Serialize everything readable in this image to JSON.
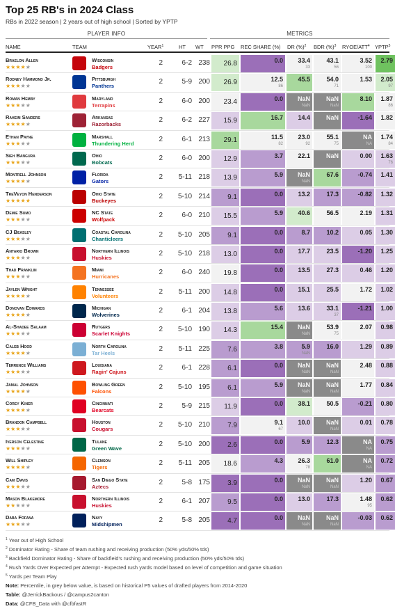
{
  "title": "Top 25 RB's in 2024 Class",
  "subtitle": "RBs in 2022 season | 2 years out of high school | Sorted by YPTP",
  "groups": {
    "player_info": "PLAYER INFO",
    "metrics": "METRICS"
  },
  "columns": {
    "name": "NAME",
    "team": "TEAM",
    "year": "YEAR",
    "year_sup": "1",
    "ht": "HT",
    "wt": "WT",
    "ppr": "PPR PPG",
    "rec": "REC SHARE (%)",
    "dr": "DR (%)",
    "dr_sup": "2",
    "bdr": "BDR (%)",
    "bdr_sup": "3",
    "ryoe": "RYOE/ATT",
    "ryoe_sup": "4",
    "yptp": "YPTP",
    "yptp_sup": "5"
  },
  "colors": {
    "rank_ramp": [
      "#9b6fb8",
      "#b99ccf",
      "#dccde6",
      "#f2f2f2",
      "#d2ebcc",
      "#a8d89d",
      "#6fc25f"
    ],
    "nan": "#8a8a8a",
    "star_on": "#e8a317",
    "star_off": "#999999"
  },
  "players": [
    {
      "name": "Braelon Allen",
      "stars": 4,
      "team": "Wisconsin",
      "mascot": "Badgers",
      "tcolor": "#c5050c",
      "year": "2",
      "ht": "6-2",
      "wt": "238",
      "ppr": {
        "v": "26.8",
        "lvl": 4
      },
      "rec": {
        "v": "0.0",
        "p": "",
        "lvl": 0
      },
      "dr": {
        "v": "33.4",
        "p": "33",
        "lvl": 3
      },
      "bdr": {
        "v": "43.1",
        "p": "56",
        "lvl": 3
      },
      "ryoe": {
        "v": "3.52",
        "p": "100",
        "lvl": 3
      },
      "yptp": {
        "v": "2.79",
        "p": "",
        "lvl": 6
      }
    },
    {
      "name": "Rodney Hammond Jr.",
      "stars": 3,
      "team": "Pittsburgh",
      "mascot": "Panthers",
      "tcolor": "#003594",
      "year": "2",
      "ht": "5-9",
      "wt": "200",
      "ppr": {
        "v": "26.9",
        "lvl": 4
      },
      "rec": {
        "v": "12.5",
        "p": "86",
        "lvl": 3
      },
      "dr": {
        "v": "45.5",
        "p": "",
        "lvl": 5
      },
      "bdr": {
        "v": "54.0",
        "p": "71",
        "lvl": 3
      },
      "ryoe": {
        "v": "1.53",
        "p": "",
        "lvl": 3
      },
      "yptp": {
        "v": "2.05",
        "p": "97",
        "lvl": 4
      }
    },
    {
      "name": "Roman Hemby",
      "stars": 3,
      "team": "Maryland",
      "mascot": "Terrapins",
      "tcolor": "#e03a3e",
      "year": "2",
      "ht": "6-0",
      "wt": "200",
      "ppr": {
        "v": "23.4",
        "lvl": 3
      },
      "rec": {
        "v": "0.0",
        "p": "",
        "lvl": 0
      },
      "dr": {
        "v": "NaN",
        "p": "NaN",
        "lvl": -1
      },
      "bdr": {
        "v": "NaN",
        "p": "NaN",
        "lvl": -1
      },
      "ryoe": {
        "v": "8.10",
        "p": "",
        "lvl": 5
      },
      "yptp": {
        "v": "1.87",
        "p": "86",
        "lvl": 3
      }
    },
    {
      "name": "Raheim Sanders",
      "stars": 4,
      "team": "Arkansas",
      "mascot": "Razorbacks",
      "tcolor": "#9d2235",
      "year": "2",
      "ht": "6-2",
      "wt": "227",
      "ppr": {
        "v": "15.9",
        "lvl": 2
      },
      "rec": {
        "v": "16.7",
        "p": "",
        "lvl": 5
      },
      "dr": {
        "v": "14.4",
        "p": "",
        "lvl": 2
      },
      "bdr": {
        "v": "NaN",
        "p": "",
        "lvl": -1
      },
      "ryoe": {
        "v": "-1.64",
        "p": "",
        "lvl": 0
      },
      "yptp": {
        "v": "1.82",
        "p": "",
        "lvl": 3
      }
    },
    {
      "name": "Ethan Payne",
      "stars": 3,
      "team": "Marshall",
      "mascot": "Thundering Herd",
      "tcolor": "#00b140",
      "year": "2",
      "ht": "6-1",
      "wt": "213",
      "ppr": {
        "v": "29.1",
        "lvl": 5
      },
      "rec": {
        "v": "11.5",
        "p": "82",
        "lvl": 3
      },
      "dr": {
        "v": "23.0",
        "p": "92",
        "lvl": 3
      },
      "bdr": {
        "v": "55.1",
        "p": "75",
        "lvl": 3
      },
      "ryoe": {
        "v": "NA",
        "p": "NA",
        "lvl": -1
      },
      "yptp": {
        "v": "1.74",
        "p": "84",
        "lvl": 3
      }
    },
    {
      "name": "Sieh Bangura",
      "stars": 3,
      "team": "Ohio",
      "mascot": "Bobcats",
      "tcolor": "#00694e",
      "year": "2",
      "ht": "6-0",
      "wt": "200",
      "ppr": {
        "v": "12.9",
        "lvl": 2
      },
      "rec": {
        "v": "3.7",
        "p": "",
        "lvl": 1
      },
      "dr": {
        "v": "22.1",
        "p": "",
        "lvl": 3
      },
      "bdr": {
        "v": "NaN",
        "p": "",
        "lvl": -1
      },
      "ryoe": {
        "v": "0.00",
        "p": "",
        "lvl": 2
      },
      "yptp": {
        "v": "1.63",
        "p": "76",
        "lvl": 2
      }
    },
    {
      "name": "Montrell Johnson",
      "stars": 4,
      "team": "Florida",
      "mascot": "Gators",
      "tcolor": "#0021a5",
      "year": "2",
      "ht": "5-11",
      "wt": "218",
      "ppr": {
        "v": "13.9",
        "lvl": 2
      },
      "rec": {
        "v": "5.9",
        "p": "",
        "lvl": 1
      },
      "dr": {
        "v": "NaN",
        "p": "NaN",
        "lvl": -1
      },
      "bdr": {
        "v": "67.6",
        "p": "",
        "lvl": 5
      },
      "ryoe": {
        "v": "-0.74",
        "p": "",
        "lvl": 1
      },
      "yptp": {
        "v": "1.41",
        "p": "",
        "lvl": 2
      }
    },
    {
      "name": "TreVeyon Henderson",
      "stars": 5,
      "team": "Ohio State",
      "mascot": "Buckeyes",
      "tcolor": "#bb0000",
      "year": "2",
      "ht": "5-10",
      "wt": "214",
      "ppr": {
        "v": "9.1",
        "lvl": 1
      },
      "rec": {
        "v": "0.0",
        "p": "",
        "lvl": 0
      },
      "dr": {
        "v": "13.2",
        "p": "",
        "lvl": 2
      },
      "bdr": {
        "v": "17.3",
        "p": "",
        "lvl": 1
      },
      "ryoe": {
        "v": "-0.82",
        "p": "",
        "lvl": 1
      },
      "yptp": {
        "v": "1.32",
        "p": "",
        "lvl": 2
      }
    },
    {
      "name": "Demie Sumo",
      "stars": 3,
      "team": "NC State",
      "mascot": "Wolfpack",
      "tcolor": "#cc0000",
      "year": "2",
      "ht": "6-0",
      "wt": "210",
      "ppr": {
        "v": "15.5",
        "lvl": 2
      },
      "rec": {
        "v": "5.9",
        "p": "",
        "lvl": 1
      },
      "dr": {
        "v": "40.6",
        "p": "",
        "lvl": 4
      },
      "bdr": {
        "v": "56.5",
        "p": "",
        "lvl": 3
      },
      "ryoe": {
        "v": "2.19",
        "p": "",
        "lvl": 3
      },
      "yptp": {
        "v": "1.31",
        "p": "",
        "lvl": 2
      }
    },
    {
      "name": "CJ Beasley",
      "stars": 3,
      "team": "Coastal Carolina",
      "mascot": "Chanticleers",
      "tcolor": "#006f71",
      "year": "2",
      "ht": "5-10",
      "wt": "205",
      "ppr": {
        "v": "9.1",
        "lvl": 1
      },
      "rec": {
        "v": "0.0",
        "p": "",
        "lvl": 0
      },
      "dr": {
        "v": "8.7",
        "p": "",
        "lvl": 1
      },
      "bdr": {
        "v": "10.2",
        "p": "",
        "lvl": 1
      },
      "ryoe": {
        "v": "0.05",
        "p": "",
        "lvl": 2
      },
      "yptp": {
        "v": "1.30",
        "p": "",
        "lvl": 2
      }
    },
    {
      "name": "Antario Brown",
      "stars": 3,
      "team": "Northern Illinois",
      "mascot": "Huskies",
      "tcolor": "#c8102e",
      "year": "2",
      "ht": "5-10",
      "wt": "218",
      "ppr": {
        "v": "13.0",
        "lvl": 2
      },
      "rec": {
        "v": "0.0",
        "p": "",
        "lvl": 0
      },
      "dr": {
        "v": "17.7",
        "p": "",
        "lvl": 2
      },
      "bdr": {
        "v": "23.5",
        "p": "",
        "lvl": 2
      },
      "ryoe": {
        "v": "-1.20",
        "p": "",
        "lvl": 0
      },
      "yptp": {
        "v": "1.25",
        "p": "",
        "lvl": 2
      }
    },
    {
      "name": "Thad Franklin",
      "stars": 3,
      "team": "Miami",
      "mascot": "Hurricanes",
      "tcolor": "#f47321",
      "year": "2",
      "ht": "6-0",
      "wt": "240",
      "ppr": {
        "v": "19.8",
        "lvl": 3
      },
      "rec": {
        "v": "0.0",
        "p": "",
        "lvl": 0
      },
      "dr": {
        "v": "13.5",
        "p": "",
        "lvl": 2
      },
      "bdr": {
        "v": "27.3",
        "p": "",
        "lvl": 2
      },
      "ryoe": {
        "v": "0.46",
        "p": "",
        "lvl": 2
      },
      "yptp": {
        "v": "1.20",
        "p": "",
        "lvl": 2
      }
    },
    {
      "name": "Jaylen Wright",
      "stars": 4,
      "team": "Tennessee",
      "mascot": "Volunteers",
      "tcolor": "#ff8200",
      "year": "2",
      "ht": "5-11",
      "wt": "200",
      "ppr": {
        "v": "14.8",
        "lvl": 2
      },
      "rec": {
        "v": "0.0",
        "p": "",
        "lvl": 0
      },
      "dr": {
        "v": "15.1",
        "p": "",
        "lvl": 2
      },
      "bdr": {
        "v": "25.5",
        "p": "",
        "lvl": 2
      },
      "ryoe": {
        "v": "1.72",
        "p": "",
        "lvl": 3
      },
      "yptp": {
        "v": "1.02",
        "p": "",
        "lvl": 2
      }
    },
    {
      "name": "Donovan Edwards",
      "stars": 4,
      "team": "Michigan",
      "mascot": "Wolverines",
      "tcolor": "#00274c",
      "year": "2",
      "ht": "6-1",
      "wt": "204",
      "ppr": {
        "v": "13.8",
        "lvl": 2
      },
      "rec": {
        "v": "5.6",
        "p": "",
        "lvl": 1
      },
      "dr": {
        "v": "13.6",
        "p": "",
        "lvl": 2
      },
      "bdr": {
        "v": "33.1",
        "p": "37",
        "lvl": 2
      },
      "ryoe": {
        "v": "-1.21",
        "p": "",
        "lvl": 0
      },
      "yptp": {
        "v": "1.00",
        "p": "",
        "lvl": 2
      }
    },
    {
      "name": "Al-Shadee Salaam",
      "stars": 3,
      "team": "Rutgers",
      "mascot": "Scarlet Knights",
      "tcolor": "#cc0033",
      "year": "2",
      "ht": "5-10",
      "wt": "190",
      "ppr": {
        "v": "14.3",
        "lvl": 2
      },
      "rec": {
        "v": "15.4",
        "p": "",
        "lvl": 5
      },
      "dr": {
        "v": "NaN",
        "p": "NaN",
        "lvl": -1
      },
      "bdr": {
        "v": "53.9",
        "p": "75",
        "lvl": 3
      },
      "ryoe": {
        "v": "2.07",
        "p": "",
        "lvl": 3
      },
      "yptp": {
        "v": "0.98",
        "p": "",
        "lvl": 2
      }
    },
    {
      "name": "Caleb Hood",
      "stars": 4,
      "team": "North Carolina",
      "mascot": "Tar Heels",
      "tcolor": "#7bafd4",
      "year": "2",
      "ht": "5-11",
      "wt": "225",
      "ppr": {
        "v": "7.6",
        "lvl": 1
      },
      "rec": {
        "v": "3.8",
        "p": "",
        "lvl": 1
      },
      "dr": {
        "v": "5.9",
        "p": "NaN",
        "lvl": 1
      },
      "bdr": {
        "v": "16.0",
        "p": "",
        "lvl": 1
      },
      "ryoe": {
        "v": "1.29",
        "p": "",
        "lvl": 2
      },
      "yptp": {
        "v": "0.89",
        "p": "",
        "lvl": 2
      }
    },
    {
      "name": "Terrence Williams",
      "stars": 3,
      "team": "Louisiana",
      "mascot": "Ragin' Cajuns",
      "tcolor": "#ce181e",
      "year": "2",
      "ht": "6-1",
      "wt": "228",
      "ppr": {
        "v": "6.1",
        "lvl": 1
      },
      "rec": {
        "v": "0.0",
        "p": "",
        "lvl": 0
      },
      "dr": {
        "v": "NaN",
        "p": "NaN",
        "lvl": -1
      },
      "bdr": {
        "v": "NaN",
        "p": "NaN",
        "lvl": -1
      },
      "ryoe": {
        "v": "2.48",
        "p": "",
        "lvl": 3
      },
      "yptp": {
        "v": "0.88",
        "p": "",
        "lvl": 2
      }
    },
    {
      "name": "Jamal Johnson",
      "stars": 4,
      "team": "Bowling Green",
      "mascot": "Falcons",
      "tcolor": "#fe5000",
      "year": "2",
      "ht": "5-10",
      "wt": "195",
      "ppr": {
        "v": "6.1",
        "lvl": 1
      },
      "rec": {
        "v": "5.9",
        "p": "",
        "lvl": 1
      },
      "dr": {
        "v": "NaN",
        "p": "NaN",
        "lvl": -1
      },
      "bdr": {
        "v": "NaN",
        "p": "NaN",
        "lvl": -1
      },
      "ryoe": {
        "v": "1.77",
        "p": "",
        "lvl": 3
      },
      "yptp": {
        "v": "0.84",
        "p": "",
        "lvl": 2
      }
    },
    {
      "name": "Corey Kiner",
      "stars": 4,
      "team": "Cincinnati",
      "mascot": "Bearcats",
      "tcolor": "#e00122",
      "year": "2",
      "ht": "5-9",
      "wt": "215",
      "ppr": {
        "v": "11.9",
        "lvl": 2
      },
      "rec": {
        "v": "0.0",
        "p": "",
        "lvl": 0
      },
      "dr": {
        "v": "38.1",
        "p": "",
        "lvl": 4
      },
      "bdr": {
        "v": "50.5",
        "p": "",
        "lvl": 3
      },
      "ryoe": {
        "v": "-0.21",
        "p": "",
        "lvl": 1
      },
      "yptp": {
        "v": "0.80",
        "p": "",
        "lvl": 2
      }
    },
    {
      "name": "Brandon Campbell",
      "stars": 3,
      "team": "Houston",
      "mascot": "Cougars",
      "tcolor": "#c8102e",
      "year": "2",
      "ht": "5-10",
      "wt": "210",
      "ppr": {
        "v": "7.9",
        "lvl": 1
      },
      "rec": {
        "v": "9.1",
        "p": "67",
        "lvl": 3
      },
      "dr": {
        "v": "10.0",
        "p": "",
        "lvl": 2
      },
      "bdr": {
        "v": "NaN",
        "p": "NaN",
        "lvl": -1
      },
      "ryoe": {
        "v": "0.01",
        "p": "",
        "lvl": 2
      },
      "yptp": {
        "v": "0.78",
        "p": "",
        "lvl": 2
      }
    },
    {
      "name": "Iverson Celestine",
      "stars": 3,
      "team": "Tulane",
      "mascot": "Green Wave",
      "tcolor": "#006747",
      "year": "2",
      "ht": "5-10",
      "wt": "200",
      "ppr": {
        "v": "2.6",
        "lvl": 0
      },
      "rec": {
        "v": "0.0",
        "p": "",
        "lvl": 0
      },
      "dr": {
        "v": "5.9",
        "p": "",
        "lvl": 1
      },
      "bdr": {
        "v": "12.3",
        "p": "",
        "lvl": 1
      },
      "ryoe": {
        "v": "NA",
        "p": "NA",
        "lvl": -1
      },
      "yptp": {
        "v": "0.75",
        "p": "",
        "lvl": 1
      }
    },
    {
      "name": "Will Shipley",
      "stars": 4,
      "team": "Clemson",
      "mascot": "Tigers",
      "tcolor": "#f56600",
      "year": "2",
      "ht": "5-11",
      "wt": "205",
      "ppr": {
        "v": "18.6",
        "lvl": 3
      },
      "rec": {
        "v": "4.3",
        "p": "",
        "lvl": 1
      },
      "dr": {
        "v": "26.3",
        "p": "78",
        "lvl": 3
      },
      "bdr": {
        "v": "61.0",
        "p": "",
        "lvl": 5
      },
      "ryoe": {
        "v": "NA",
        "p": "NA",
        "lvl": -1
      },
      "yptp": {
        "v": "0.72",
        "p": "",
        "lvl": 1
      }
    },
    {
      "name": "Cam Davis",
      "stars": 3,
      "team": "San Diego State",
      "mascot": "Aztecs",
      "tcolor": "#a6192e",
      "year": "2",
      "ht": "5-8",
      "wt": "175",
      "ppr": {
        "v": "3.9",
        "lvl": 0
      },
      "rec": {
        "v": "0.0",
        "p": "",
        "lvl": 0
      },
      "dr": {
        "v": "NaN",
        "p": "NaN",
        "lvl": -1
      },
      "bdr": {
        "v": "NaN",
        "p": "NaN",
        "lvl": -1
      },
      "ryoe": {
        "v": "1.20",
        "p": "",
        "lvl": 2
      },
      "yptp": {
        "v": "0.67",
        "p": "",
        "lvl": 1
      }
    },
    {
      "name": "Mason Blakemore",
      "stars": 2,
      "team": "Northern Illinois",
      "mascot": "Huskies",
      "tcolor": "#c8102e",
      "year": "2",
      "ht": "6-1",
      "wt": "207",
      "ppr": {
        "v": "9.5",
        "lvl": 1
      },
      "rec": {
        "v": "0.0",
        "p": "",
        "lvl": 0
      },
      "dr": {
        "v": "13.0",
        "p": "",
        "lvl": 2
      },
      "bdr": {
        "v": "17.3",
        "p": "",
        "lvl": 1
      },
      "ryoe": {
        "v": "1.48",
        "p": "95",
        "lvl": 3
      },
      "yptp": {
        "v": "0.62",
        "p": "",
        "lvl": 1
      }
    },
    {
      "name": "Daba Fofana",
      "stars": 3,
      "team": "Navy",
      "mascot": "Midshipmen",
      "tcolor": "#00205b",
      "year": "2",
      "ht": "5-8",
      "wt": "205",
      "ppr": {
        "v": "4.7",
        "lvl": 0
      },
      "rec": {
        "v": "0.0",
        "p": "",
        "lvl": 0
      },
      "dr": {
        "v": "NaN",
        "p": "NaN",
        "lvl": -1
      },
      "bdr": {
        "v": "NaN",
        "p": "NaN",
        "lvl": -1
      },
      "ryoe": {
        "v": "-0.03",
        "p": "",
        "lvl": 1
      },
      "yptp": {
        "v": "0.62",
        "p": "",
        "lvl": 1
      }
    }
  ],
  "footnotes": [
    {
      "sup": "1",
      "text": "Year out of High School"
    },
    {
      "sup": "2",
      "text": "Dominator Rating - Share of team rushing and receiving production (50% yds/50% tds)"
    },
    {
      "sup": "3",
      "text": "Backfield Dominator Rating - Share of backfield's rushing and receiving production (50% yds/50% tds)"
    },
    {
      "sup": "4",
      "text": "Rush Yards Over Expected per Attempt - Expected rush yards model based on level of competition and game situation"
    },
    {
      "sup": "5",
      "text": "Yards per Team Play"
    }
  ],
  "note_label": "Note:",
  "note": "Percentile, in grey below value, is based on historical P5 values of drafted players from 2014-2020",
  "table_label": "Table:",
  "table_credit": "@JerrickBackous / @campus2canton",
  "data_label": "Data:",
  "data_credit": "@CFB_Data with @cfbfastR"
}
